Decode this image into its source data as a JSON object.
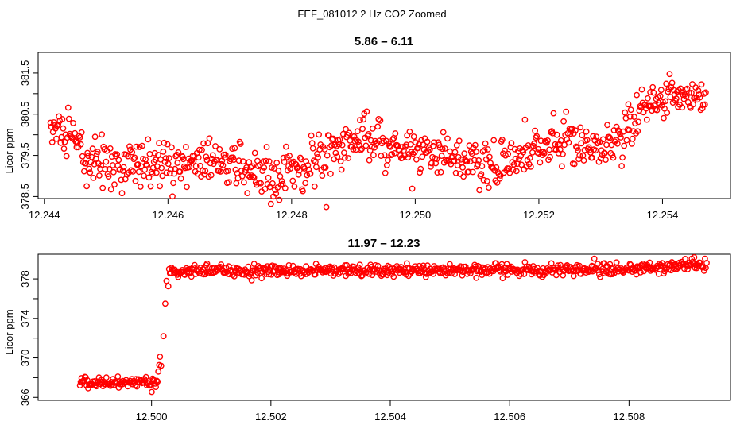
{
  "figure_title": "FEF_081012  2 Hz CO2 Zoomed",
  "colors": {
    "points": "#ff0000",
    "axes": "#000000",
    "background": "#ffffff"
  },
  "chart_data": [
    {
      "type": "scatter",
      "title": "5.86 – 6.11",
      "xlabel": "",
      "ylabel": "Licor ppm",
      "xlim": [
        12.2439,
        12.2551
      ],
      "ylim": [
        378.45,
        382.0
      ],
      "x_ticks": [
        "12.244",
        "12.246",
        "12.248",
        "12.250",
        "12.252",
        "12.254"
      ],
      "y_ticks": [
        "378.5",
        "379.5",
        "380.5",
        "381.5"
      ],
      "y_tick_values": [
        378.5,
        379.0,
        379.5,
        380.0,
        380.5,
        381.0,
        381.5
      ],
      "series_profile": {
        "x_start": 12.2441,
        "x_end": 12.2547,
        "n_points": 780,
        "trend": [
          [
            12.2441,
            380.1
          ],
          [
            12.2445,
            379.9
          ],
          [
            12.2447,
            379.4
          ],
          [
            12.245,
            379.25
          ],
          [
            12.2455,
            379.35
          ],
          [
            12.2465,
            379.3
          ],
          [
            12.2473,
            379.2
          ],
          [
            12.2478,
            379.0
          ],
          [
            12.2483,
            379.3
          ],
          [
            12.2488,
            379.8
          ],
          [
            12.2492,
            380.0
          ],
          [
            12.2496,
            379.7
          ],
          [
            12.2502,
            379.6
          ],
          [
            12.2506,
            379.35
          ],
          [
            12.2512,
            379.3
          ],
          [
            12.2518,
            379.4
          ],
          [
            12.2523,
            379.9
          ],
          [
            12.2527,
            379.7
          ],
          [
            12.2533,
            379.9
          ],
          [
            12.2537,
            380.6
          ],
          [
            12.254,
            381.0
          ],
          [
            12.2544,
            380.9
          ],
          [
            12.2547,
            380.8
          ]
        ],
        "noise_ppm": 0.28
      }
    },
    {
      "type": "scatter",
      "title": "11.97 – 12.23",
      "xlabel": "",
      "ylabel": "Licor ppm",
      "xlim": [
        12.4981,
        12.5097
      ],
      "ylim": [
        365.7,
        380.5
      ],
      "x_ticks": [
        "12.500",
        "12.502",
        "12.504",
        "12.506",
        "12.508"
      ],
      "y_ticks": [
        "366",
        "370",
        "374",
        "378"
      ],
      "y_tick_values": [
        366,
        368,
        370,
        372,
        374,
        376,
        378
      ],
      "series_profile": {
        "x_start": 12.4988,
        "x_end": 12.5093,
        "n_points": 760,
        "step_x": 12.5002,
        "transition_points": [
          [
            12.50016,
            369.2
          ],
          [
            12.5002,
            372.2
          ],
          [
            12.50023,
            375.5
          ],
          [
            12.50025,
            377.8
          ]
        ],
        "trend": [
          [
            12.4988,
            367.5
          ],
          [
            12.5001,
            367.6
          ],
          [
            12.5003,
            378.8
          ],
          [
            12.505,
            378.9
          ],
          [
            12.507,
            378.9
          ],
          [
            12.5085,
            379.1
          ],
          [
            12.5089,
            379.4
          ],
          [
            12.5093,
            379.4
          ]
        ],
        "noise_ppm": 0.3
      }
    }
  ]
}
